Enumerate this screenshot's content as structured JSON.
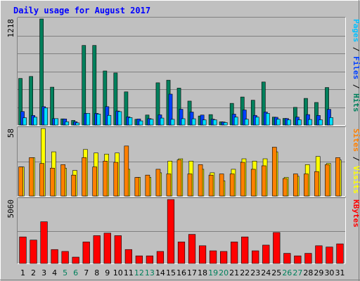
{
  "chart_data": {
    "type": "bar",
    "title": "Daily usage for August 2017",
    "days": [
      "1",
      "2",
      "3",
      "4",
      "5",
      "6",
      "7",
      "8",
      "9",
      "10",
      "11",
      "12",
      "13",
      "14",
      "15",
      "16",
      "17",
      "18",
      "19",
      "20",
      "21",
      "22",
      "23",
      "24",
      "25",
      "26",
      "27",
      "28",
      "29",
      "30",
      "31"
    ],
    "weekend_days": [
      "5",
      "6",
      "12",
      "13",
      "19",
      "20",
      "26",
      "27"
    ],
    "colors": {
      "background": "#c0c0c0",
      "hits": "#00805c",
      "files": "#0040ff",
      "pages": "#00e0ff",
      "visits": "#ffff00",
      "sites": "#ff8000",
      "kbytes": "#ff0000",
      "title": "#0000ff",
      "weekend": "#00805c",
      "weekday": "#000000"
    },
    "panels": [
      {
        "id": "hits",
        "max_label": "1218",
        "ylim": [
          0,
          1218
        ],
        "side_labels": [
          {
            "text": "Pages",
            "color": "#00c0ff"
          },
          {
            "text": " / ",
            "color": "#000000"
          },
          {
            "text": "Files",
            "color": "#0040ff"
          },
          {
            "text": " / ",
            "color": "#000000"
          },
          {
            "text": "Hits",
            "color": "#00805c"
          }
        ],
        "series": [
          {
            "name": "Hits",
            "color": "#00805c",
            "values": [
              535,
              558,
              1218,
              435,
              71,
              53,
              914,
              914,
              621,
              598,
              381,
              66,
              115,
              485,
              515,
              424,
              275,
              104,
              120,
              37,
              249,
              322,
              285,
              494,
              91,
              76,
              203,
              306,
              259,
              431,
              0
            ]
          },
          {
            "name": "Files",
            "color": "#0040ff",
            "values": [
              155,
              110,
              211,
              74,
              70,
              38,
              134,
              134,
              211,
              161,
              94,
              70,
              74,
              117,
              355,
              181,
              149,
              115,
              67,
              35,
              125,
              173,
              111,
              149,
              89,
              75,
              91,
              120,
              110,
              180,
              0
            ]
          },
          {
            "name": "Pages",
            "color": "#00e0ff",
            "values": [
              84,
              90,
              197,
              74,
              38,
              25,
              134,
              126,
              111,
              154,
              86,
              48,
              67,
              80,
              66,
              73,
              72,
              59,
              60,
              29,
              91,
              67,
              91,
              134,
              67,
              59,
              60,
              64,
              60,
              86,
              0
            ]
          }
        ]
      },
      {
        "id": "visits",
        "max_label": "58",
        "ylim": [
          0,
          58
        ],
        "side_labels": [
          {
            "text": "Sites",
            "color": "#ff8000"
          },
          {
            "text": " / ",
            "color": "#000000"
          },
          {
            "text": "Visits",
            "color": "#ffff00"
          }
        ],
        "series": [
          {
            "name": "Visits",
            "color": "#ffff00",
            "values": [
              25,
              33,
              58,
              38,
              24,
              22,
              40,
              37,
              36,
              37,
              23,
              16,
              16,
              20,
              30,
              32,
              30,
              23,
              20,
              13,
              23,
              32,
              30,
              32,
              38,
              16,
              17,
              27,
              34,
              28,
              31
            ]
          },
          {
            "name": "Sites",
            "color": "#ff8000",
            "values": [
              25,
              33,
              28,
              24,
              27,
              18,
              33,
              25,
              30,
              29,
              43,
              16,
              18,
              23,
              19,
              31,
              19,
              27,
              18,
              19,
              19,
              29,
              23,
              26,
              42,
              15,
              19,
              19,
              21,
              27,
              33
            ]
          }
        ]
      },
      {
        "id": "kbytes",
        "max_label": "5060",
        "ylim": [
          0,
          5060
        ],
        "side_labels": [
          {
            "text": "KBytes",
            "color": "#ff0000"
          }
        ],
        "series": [
          {
            "name": "KBytes",
            "color": "#ff0000",
            "values": [
              2100,
              1850,
              3300,
              1100,
              950,
              500,
              1700,
              2200,
              2400,
              2200,
              1100,
              600,
              600,
              950,
              5060,
              1700,
              2300,
              1400,
              1000,
              950,
              1700,
              2100,
              1000,
              1450,
              2450,
              800,
              600,
              800,
              1400,
              1300,
              1550
            ]
          }
        ]
      }
    ]
  }
}
